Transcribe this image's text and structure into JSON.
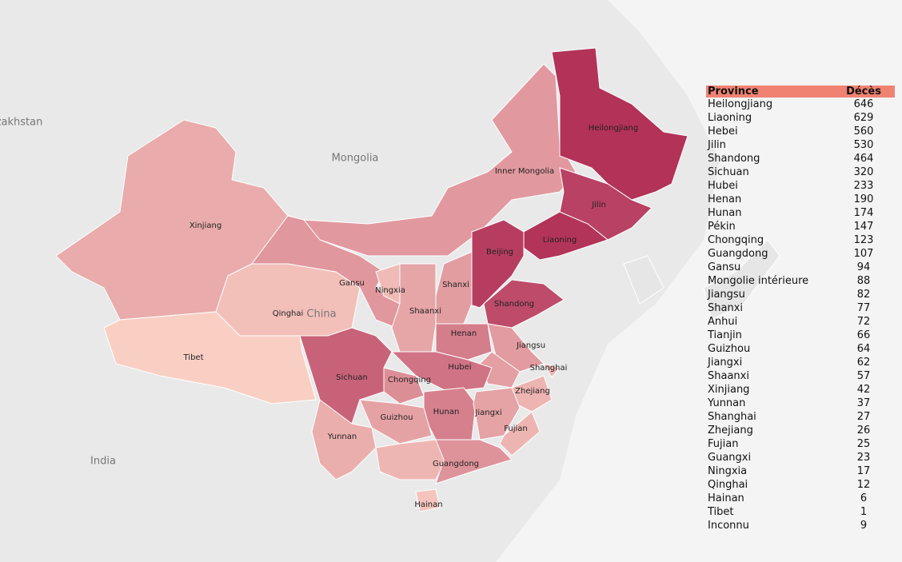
{
  "map": {
    "background_labels": [
      "zakhstan",
      "Mongolia",
      "China",
      "India"
    ],
    "province_labels": [
      "Heilongjiang",
      "Jilin",
      "Liaoning",
      "Beijing",
      "Inner Mongolia",
      "Xinjiang",
      "Qinghai",
      "Tibet",
      "Gansu",
      "Ningxia",
      "Shanxi",
      "Shaanxi",
      "Shandong",
      "Henan",
      "Jiangsu",
      "Shanghai",
      "Hubei",
      "Sichuan",
      "Chongqing",
      "Zhejiang",
      "Hunan",
      "Jiangxi",
      "Guizhou",
      "Yunnan",
      "Fujian",
      "Guangdong",
      "Hainan"
    ]
  },
  "table": {
    "header": [
      "Province",
      "Décès"
    ],
    "rows": [
      [
        "Heilongjiang",
        646
      ],
      [
        "Liaoning",
        629
      ],
      [
        "Hebei",
        560
      ],
      [
        "Jilin",
        530
      ],
      [
        "Shandong",
        464
      ],
      [
        "Sichuan",
        320
      ],
      [
        "Hubei",
        233
      ],
      [
        "Henan",
        190
      ],
      [
        "Hunan",
        174
      ],
      [
        "Pékin",
        147
      ],
      [
        "Chongqing",
        123
      ],
      [
        "Guangdong",
        107
      ],
      [
        "Gansu",
        94
      ],
      [
        "Mongolie intérieure",
        88
      ],
      [
        "Jiangsu",
        82
      ],
      [
        "Shanxi",
        77
      ],
      [
        "Anhui",
        72
      ],
      [
        "Tianjin",
        66
      ],
      [
        "Guizhou",
        64
      ],
      [
        "Jiangxi",
        62
      ],
      [
        "Shaanxi",
        57
      ],
      [
        "Xinjiang",
        42
      ],
      [
        "Yunnan",
        37
      ],
      [
        "Shanghai",
        27
      ],
      [
        "Zhejiang",
        26
      ],
      [
        "Fujian",
        25
      ],
      [
        "Guangxi",
        23
      ],
      [
        "Ningxia",
        17
      ],
      [
        "Qinghai",
        12
      ],
      [
        "Hainan",
        6
      ],
      [
        "Tibet",
        1
      ],
      [
        "Inconnu",
        9
      ]
    ]
  }
}
